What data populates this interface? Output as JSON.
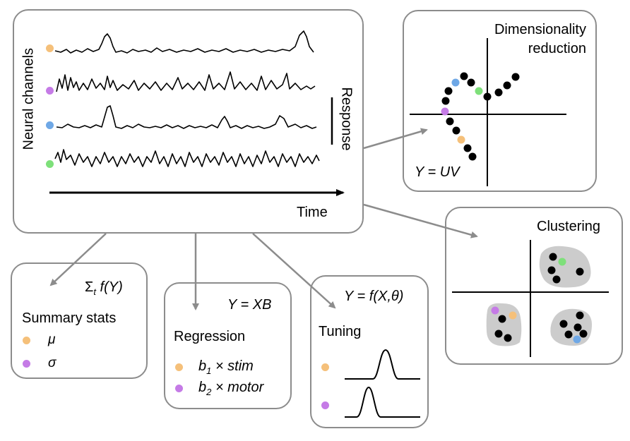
{
  "main_panel": {
    "ylabel": "Neural channels",
    "scale_label": "Response",
    "xlabel": "Time"
  },
  "channel_colors": [
    "#f5c07a",
    "#c57be6",
    "#6fa8e6",
    "#7ee07a"
  ],
  "dimred": {
    "title_line1": "Dimensionality",
    "title_line2": "reduction",
    "equation": "Y = UV"
  },
  "clustering": {
    "title": "Clustering"
  },
  "summary": {
    "equation_sigma": "Σ",
    "equation_sub": "t",
    "equation_rest": " f(Y)",
    "title": "Summary stats",
    "items": [
      {
        "symbol": "μ",
        "color": "#f5c07a"
      },
      {
        "symbol": "σ",
        "color": "#c57be6"
      }
    ]
  },
  "regression": {
    "equation": "Y = XB",
    "title": "Regression",
    "items": [
      {
        "coef": "b",
        "sub": "1",
        "term": " × stim",
        "color": "#f5c07a"
      },
      {
        "coef": "b",
        "sub": "2",
        "term": " × motor",
        "color": "#c57be6"
      }
    ]
  },
  "tuning": {
    "equation": "Y = f(X,θ)",
    "title": "Tuning",
    "colors": [
      "#f5c07a",
      "#c57be6"
    ]
  }
}
